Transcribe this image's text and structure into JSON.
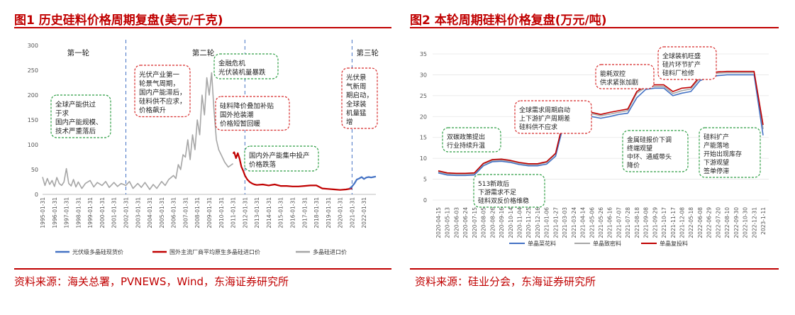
{
  "fig1": {
    "title": "图1 历史硅料价格周期复盘(美元/千克)",
    "source": "资料来源：海关总署，PVNEWS，Wind，东海证券研究所",
    "chart_data": {
      "type": "line",
      "ylim": [
        0,
        300
      ],
      "yticks": [
        "300",
        "250",
        "200",
        "150",
        "100",
        "50",
        "0"
      ],
      "xlim": [
        1995.0,
        2023.0
      ],
      "xticks": [
        "1995-01-31",
        "1996-01-31",
        "1997-01-31",
        "1998-01-31",
        "1999-01-31",
        "2000-01-31",
        "2001-01-31",
        "2002-01-31",
        "2003-01-31",
        "2004-01-31",
        "2005-01-31",
        "2006-01-31",
        "2007-01-31",
        "2008-01-31",
        "2009-01-31",
        "2010-01-31",
        "2011-01-31",
        "2012-01-31",
        "2013-01-31",
        "2014-01-31",
        "2015-01-31",
        "2016-01-31",
        "2017-01-31",
        "2018-01-31",
        "2019-01-31",
        "2020-01-31",
        "2021-01-31",
        "2022-01-31"
      ],
      "dividers": [
        2002.0,
        2012.0,
        2021.0
      ],
      "rounds": [
        "第一轮",
        "第二轮",
        "第三轮"
      ],
      "series": [
        {
          "name": "光伏级多晶硅现货价",
          "color": "#4472c4",
          "x": [
            2020.8,
            2021.0,
            2021.2,
            2021.4,
            2021.6,
            2021.8,
            2022.0,
            2022.2,
            2022.4,
            2022.6,
            2022.8,
            2023.0
          ],
          "y": [
            12,
            16,
            22,
            30,
            32,
            35,
            31,
            34,
            35,
            34,
            35,
            36
          ]
        },
        {
          "name": "国外主流厂商平均原生多晶硅进口价",
          "color": "#c00000",
          "x": [
            2011.0,
            2011.1,
            2011.25,
            2011.4,
            2011.55,
            2011.7,
            2011.85,
            2012.0,
            2012.2,
            2012.4,
            2012.6,
            2012.8,
            2013.0,
            2013.5,
            2014.0,
            2014.5,
            2015.0,
            2015.5,
            2016.0,
            2016.5,
            2017.0,
            2017.5,
            2018.0,
            2018.5,
            2019.0,
            2019.5,
            2020.0,
            2020.5,
            2021.0
          ],
          "y": [
            82,
            85,
            73,
            83,
            72,
            56,
            48,
            38,
            30,
            25,
            22,
            20,
            19,
            20,
            18,
            20,
            17,
            17,
            16,
            16,
            17,
            18,
            18,
            12,
            11,
            10,
            9,
            10,
            12
          ]
        },
        {
          "name": "多晶硅进口价",
          "color": "#a6a6a6",
          "x": [
            1995.0,
            1995.2,
            1995.4,
            1995.6,
            1995.8,
            1996.0,
            1996.2,
            1996.4,
            1996.6,
            1996.8,
            1997.0,
            1997.2,
            1997.4,
            1997.6,
            1997.8,
            1998.0,
            1998.3,
            1998.6,
            1999.0,
            1999.3,
            1999.6,
            2000.0,
            2000.3,
            2000.6,
            2001.0,
            2001.3,
            2001.6,
            2002.0,
            2002.3,
            2002.6,
            2003.0,
            2003.3,
            2003.6,
            2004.0,
            2004.3,
            2004.6,
            2005.0,
            2005.3,
            2005.6,
            2006.0,
            2006.2,
            2006.4,
            2006.6,
            2006.8,
            2007.0,
            2007.2,
            2007.4,
            2007.6,
            2007.8,
            2008.0,
            2008.2,
            2008.4,
            2008.6,
            2008.8,
            2009.0,
            2009.2,
            2009.4,
            2009.6,
            2009.8,
            2010.0,
            2010.3,
            2010.6,
            2011.0
          ],
          "y": [
            35,
            18,
            32,
            20,
            28,
            16,
            34,
            22,
            18,
            25,
            52,
            22,
            17,
            30,
            15,
            25,
            12,
            22,
            28,
            15,
            24,
            18,
            26,
            14,
            24,
            16,
            22,
            18,
            26,
            12,
            22,
            14,
            24,
            10,
            20,
            12,
            26,
            18,
            30,
            38,
            32,
            60,
            50,
            80,
            75,
            110,
            70,
            120,
            90,
            150,
            120,
            200,
            160,
            235,
            200,
            245,
            170,
            110,
            90,
            80,
            65,
            55,
            62
          ]
        }
      ]
    },
    "annotations": [
      {
        "id": "fig1-note-round1",
        "lines": [
          "全球产能供过",
          "于求",
          "国内产能规模、",
          "技术严重落后"
        ],
        "tone": "green"
      },
      {
        "id": "fig1-note-round2",
        "lines": [
          "光伏产业第一",
          "轮景气周期，",
          "国内产能滞后，",
          "硅料供不应求，",
          "价格飙升"
        ],
        "tone": "red"
      },
      {
        "id": "fig1-note-crisis",
        "lines": [
          "金融危机",
          "光伏装机量暴跌"
        ],
        "tone": "green"
      },
      {
        "id": "fig1-note-subsidy",
        "lines": [
          "硅料降价叠加补贴",
          "国外抢装潮",
          "价格短暂回暖"
        ],
        "tone": "red"
      },
      {
        "id": "fig1-note-domestic",
        "lines": [
          "国内外产能集中投产",
          "价格跌落"
        ],
        "tone": "green"
      },
      {
        "id": "fig1-note-round3",
        "lines": [
          "光伏景",
          "气新周",
          "期启动，",
          "全球装",
          "机量猛",
          "增"
        ],
        "tone": "red"
      }
    ]
  },
  "fig2": {
    "title": "图2 本轮周期硅料价格复盘(万元/吨)",
    "source": "资料来源：硅业分会，东海证券研究所",
    "chart_data": {
      "type": "line",
      "ylim": [
        0,
        35
      ],
      "yticks": [
        "35",
        "30",
        "25",
        "20",
        "15",
        "10",
        "5",
        "0"
      ],
      "xticks": [
        "2020-04-15",
        "2020-05-13",
        "2020-06-03",
        "2020-06-24",
        "2020-07-15",
        "2020-08-05",
        "2020-08-26",
        "2020-09-16",
        "2020-10-14",
        "2020-11-04",
        "2020-11-25",
        "2020-12-16",
        "2021-01-06",
        "2021-01-27",
        "2021-03-03",
        "2021-03-24",
        "2021-04-14",
        "2021-05-06",
        "2021-05-26",
        "2021-06-16",
        "2021-07-07",
        "2021-07-28",
        "2021-08-18",
        "2021-09-08",
        "2021-09-29",
        "2021-10-17",
        "2021-11-17",
        "2021-12-08",
        "2022-05-18",
        "2022-06-08",
        "2022-06-29",
        "2022-07-20",
        "2022-08-10",
        "2022-09-30",
        "2022-10-30",
        "2022-12-31",
        "2023-1-11"
      ],
      "series": [
        {
          "name": "单晶菜花料",
          "color": "#4472c4",
          "x": [
            0,
            1,
            2,
            3,
            4,
            5,
            6,
            7,
            8,
            9,
            10,
            11,
            12,
            13,
            14,
            15,
            16,
            17,
            18,
            19,
            20,
            21,
            22,
            23,
            24,
            25,
            26,
            27,
            28,
            29,
            30,
            31,
            32,
            33,
            34,
            35,
            36
          ],
          "y": [
            6.5,
            6.0,
            5.9,
            5.9,
            6.0,
            8.2,
            9.2,
            9.3,
            9.0,
            8.5,
            8.2,
            8.2,
            8.6,
            10.5,
            19.0,
            20.6,
            20.6,
            20.0,
            19.6,
            20.0,
            20.5,
            20.8,
            24.5,
            26.5,
            26.8,
            26.8,
            25.0,
            25.6,
            26.0,
            28.6,
            29.5,
            29.8,
            30.0,
            30.0,
            30.0,
            30.0,
            15.5
          ]
        },
        {
          "name": "单晶致密料",
          "color": "#a6a6a6",
          "x": [
            0,
            1,
            2,
            3,
            4,
            5,
            6,
            7,
            8,
            9,
            10,
            11,
            12,
            13,
            14,
            15,
            16,
            17,
            18,
            19,
            20,
            21,
            22,
            23,
            24,
            25,
            26,
            27,
            28,
            29,
            30,
            31,
            32,
            33,
            34,
            35,
            36
          ],
          "y": [
            6.8,
            6.3,
            6.2,
            6.2,
            6.3,
            8.6,
            9.5,
            9.6,
            9.3,
            8.8,
            8.5,
            8.5,
            9.0,
            11.0,
            19.8,
            21.2,
            21.4,
            20.7,
            20.2,
            20.6,
            21.0,
            21.4,
            25.6,
            27.0,
            27.2,
            27.2,
            25.5,
            26.2,
            26.6,
            29.2,
            30.0,
            30.4,
            30.5,
            30.5,
            30.5,
            30.5,
            17.0
          ]
        },
        {
          "name": "单晶复投料",
          "color": "#c00000",
          "x": [
            0,
            1,
            2,
            3,
            4,
            5,
            6,
            7,
            8,
            9,
            10,
            11,
            12,
            13,
            14,
            15,
            16,
            17,
            18,
            19,
            20,
            21,
            22,
            23,
            24,
            25,
            26,
            27,
            28,
            29,
            30,
            31,
            32,
            33,
            34,
            35,
            36
          ],
          "y": [
            7.0,
            6.5,
            6.4,
            6.4,
            6.5,
            8.8,
            9.7,
            9.8,
            9.5,
            9.0,
            8.7,
            8.7,
            9.2,
            11.2,
            20.2,
            21.7,
            21.8,
            21.0,
            20.5,
            21.0,
            21.4,
            21.8,
            26.0,
            27.4,
            27.6,
            27.6,
            26.0,
            26.8,
            27.0,
            29.6,
            30.3,
            30.7,
            30.8,
            30.8,
            30.8,
            30.8,
            18.0
          ]
        }
      ]
    },
    "annotations": [
      {
        "id": "fig2-note-carbon",
        "lines": [
          "双碳政策提出",
          "行业持续升温"
        ],
        "tone": "green"
      },
      {
        "id": "fig2-note-513",
        "lines": [
          "513新政后",
          "下游需求不足",
          "硅料双反价格维稳"
        ],
        "tone": "green"
      },
      {
        "id": "fig2-note-demand",
        "lines": [
          "全球需求周期启动",
          "上下游扩产周期差",
          "硅料供不应求"
        ],
        "tone": "red"
      },
      {
        "id": "fig2-note-energy",
        "lines": [
          "能耗双控",
          "供求紧张加剧"
        ],
        "tone": "red"
      },
      {
        "id": "fig2-note-metal",
        "lines": [
          "金属硅报价下调",
          "终端观望",
          "中环、通威带头",
          "降价"
        ],
        "tone": "green"
      },
      {
        "id": "fig2-note-install",
        "lines": [
          "全球装机旺盛",
          "硅片环节扩产",
          "硅料厂检修"
        ],
        "tone": "red"
      },
      {
        "id": "fig2-note-expand",
        "lines": [
          "硅料扩产",
          "产能落地",
          "开始出现库存",
          "下游观望",
          "签单停滞"
        ],
        "tone": "green"
      }
    ]
  }
}
